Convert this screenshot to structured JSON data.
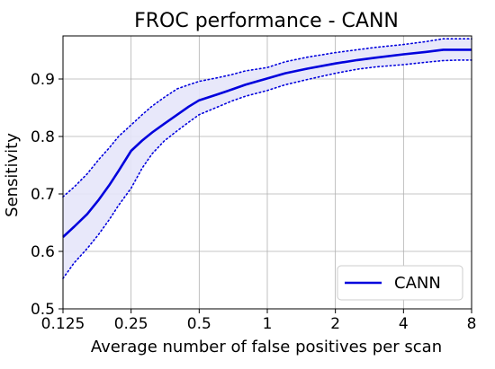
{
  "chart_data": {
    "type": "line",
    "title": "FROC performance - CANN",
    "xlabel": "Average number of false positives per scan",
    "ylabel": "Sensitivity",
    "x_scale": "log2",
    "xlim": [
      0.125,
      8
    ],
    "ylim": [
      0.5,
      0.975
    ],
    "x_ticks": [
      "0.125",
      "0.25",
      "0.5",
      "1",
      "2",
      "4",
      "8"
    ],
    "x_tick_values": [
      0.125,
      0.25,
      0.5,
      1,
      2,
      4,
      8
    ],
    "y_ticks": [
      "0.5",
      "0.6",
      "0.7",
      "0.8",
      "0.9"
    ],
    "y_tick_values": [
      0.5,
      0.6,
      0.7,
      0.8,
      0.9
    ],
    "grid": true,
    "legend": {
      "placement": "lower-right",
      "entries": [
        "CANN"
      ]
    },
    "colors": {
      "line": "#0000dd",
      "band": "#e6e6fa",
      "band_edge": "#0000dd"
    },
    "series": [
      {
        "name": "CANN",
        "x": [
          0.125,
          0.14,
          0.16,
          0.18,
          0.2,
          0.22,
          0.25,
          0.28,
          0.31,
          0.35,
          0.4,
          0.45,
          0.5,
          0.6,
          0.7,
          0.8,
          1.0,
          1.2,
          1.5,
          2.0,
          2.5,
          3.0,
          4.0,
          5.0,
          6.0,
          7.0,
          8.0
        ],
        "values": [
          0.625,
          0.643,
          0.665,
          0.69,
          0.715,
          0.74,
          0.775,
          0.793,
          0.807,
          0.822,
          0.838,
          0.852,
          0.863,
          0.873,
          0.882,
          0.89,
          0.901,
          0.91,
          0.918,
          0.927,
          0.933,
          0.937,
          0.943,
          0.947,
          0.951,
          0.951,
          0.951
        ],
        "lower": [
          0.553,
          0.58,
          0.605,
          0.63,
          0.655,
          0.68,
          0.71,
          0.745,
          0.77,
          0.792,
          0.81,
          0.825,
          0.838,
          0.851,
          0.862,
          0.87,
          0.88,
          0.89,
          0.899,
          0.91,
          0.917,
          0.921,
          0.925,
          0.929,
          0.932,
          0.933,
          0.933
        ],
        "upper": [
          0.695,
          0.712,
          0.735,
          0.76,
          0.78,
          0.8,
          0.82,
          0.838,
          0.853,
          0.868,
          0.883,
          0.89,
          0.896,
          0.902,
          0.908,
          0.914,
          0.92,
          0.93,
          0.938,
          0.946,
          0.951,
          0.955,
          0.96,
          0.965,
          0.97,
          0.97,
          0.97
        ]
      }
    ]
  }
}
